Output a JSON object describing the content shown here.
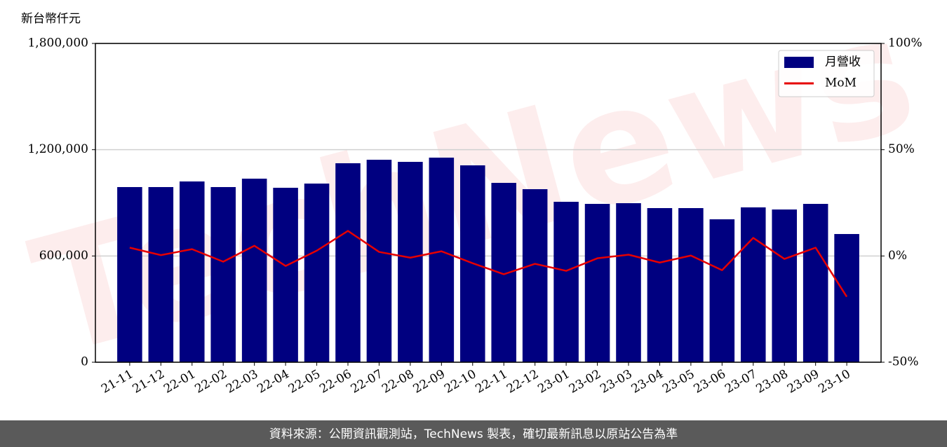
{
  "chart_data": {
    "type": "bar",
    "ylabel": "新台幣仟元",
    "watermark": "TechNews",
    "categories": [
      "21-11",
      "21-12",
      "22-01",
      "22-02",
      "22-03",
      "22-04",
      "22-05",
      "22-06",
      "22-07",
      "22-08",
      "22-09",
      "22-10",
      "22-11",
      "22-12",
      "23-01",
      "23-02",
      "23-03",
      "23-04",
      "23-05",
      "23-06",
      "23-07",
      "23-08",
      "23-09",
      "23-10"
    ],
    "series": [
      {
        "name": "月營收",
        "type": "bar",
        "color": "#000080",
        "values": [
          989000,
          989000,
          1020700,
          989000,
          1036500,
          985000,
          1008800,
          1123500,
          1143300,
          1131400,
          1155200,
          1111600,
          1012700,
          977100,
          905900,
          894100,
          898000,
          870300,
          870300,
          807000,
          874300,
          862400,
          894100,
          723900
        ]
      },
      {
        "name": "MoM",
        "type": "line",
        "axis": "y2",
        "color": "#e60000",
        "values": [
          3.9,
          0.4,
          3.2,
          -2.7,
          4.8,
          -4.7,
          2.5,
          11.8,
          1.9,
          -0.8,
          2.2,
          -3.4,
          -8.6,
          -3.7,
          -7.0,
          -1.1,
          0.6,
          -3.1,
          0.2,
          -6.7,
          8.5,
          -1.4,
          3.9,
          -19.2
        ]
      }
    ],
    "ylim": [
      0,
      1800000
    ],
    "yticks": [
      0,
      {
        "value": 600000,
        "label": "600,000"
      },
      {
        "value": 1200000,
        "label": "1,200,000"
      },
      {
        "value": 1800000,
        "label": "1,800,000"
      }
    ],
    "y2lim": [
      -50,
      100
    ],
    "y2ticks": [
      {
        "value": -50,
        "label": "-50%"
      },
      {
        "value": 0,
        "label": "0%"
      },
      {
        "value": 50,
        "label": "50%"
      },
      {
        "value": 100,
        "label": "100%"
      }
    ],
    "grid": true,
    "legend": "upper right"
  },
  "footer": "資料來源：公開資訊觀測站，TechNews 製表，確切最新訊息以原站公告為準"
}
